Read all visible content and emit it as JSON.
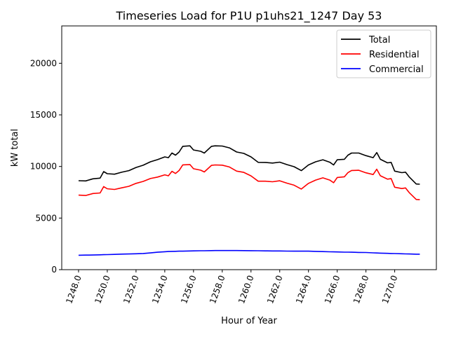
{
  "chart_data": {
    "type": "line",
    "title": "Timeseries Load for P1U p1uhs21_1247  Day 53",
    "xlabel": "Hour of Year",
    "ylabel": "kW total",
    "xlim": [
      1246.83,
      1272.9
    ],
    "ylim": [
      0,
      23620
    ],
    "xticks": [
      1248,
      1250,
      1252,
      1254,
      1256,
      1258,
      1260,
      1262,
      1264,
      1266,
      1268,
      1270
    ],
    "xtick_labels": [
      "1248.0",
      "1250.0",
      "1252.0",
      "1254.0",
      "1256.0",
      "1258.0",
      "1260.0",
      "1262.0",
      "1264.0",
      "1266.0",
      "1268.0",
      "1270.0"
    ],
    "yticks": [
      0,
      5000,
      10000,
      15000,
      20000
    ],
    "ytick_labels": [
      "0",
      "5000",
      "10000",
      "15000",
      "20000"
    ],
    "grid": false,
    "legend_position": "top-right",
    "x": [
      1248,
      1248.5,
      1249,
      1249.5,
      1249.75,
      1250,
      1250.5,
      1251,
      1251.5,
      1252,
      1252.5,
      1253,
      1253.5,
      1254,
      1254.25,
      1254.5,
      1254.75,
      1255,
      1255.25,
      1255.75,
      1256,
      1256.5,
      1256.75,
      1257.25,
      1257.5,
      1258,
      1258.5,
      1259,
      1259.5,
      1260,
      1260.5,
      1261,
      1261.5,
      1262,
      1262.5,
      1263,
      1263.5,
      1264,
      1264.5,
      1265,
      1265.5,
      1265.75,
      1266,
      1266.5,
      1266.75,
      1267,
      1267.5,
      1268,
      1268.5,
      1268.75,
      1269,
      1269.5,
      1269.75,
      1270,
      1270.5,
      1270.75,
      1271,
      1271.5,
      1271.75
    ],
    "series": [
      {
        "name": "Total",
        "color": "#000000",
        "values": [
          8620,
          8600,
          8800,
          8870,
          9500,
          9300,
          9250,
          9440,
          9600,
          9900,
          10120,
          10450,
          10660,
          10930,
          10850,
          11300,
          11100,
          11400,
          11950,
          12000,
          11600,
          11470,
          11300,
          11950,
          12000,
          11980,
          11800,
          11400,
          11270,
          10930,
          10400,
          10390,
          10330,
          10420,
          10180,
          9980,
          9600,
          10150,
          10450,
          10650,
          10400,
          10150,
          10650,
          10700,
          11100,
          11300,
          11300,
          11050,
          10850,
          11350,
          10700,
          10350,
          10400,
          9550,
          9400,
          9450,
          9000,
          8300,
          8280
        ]
      },
      {
        "name": "Residential",
        "color": "#ff0000",
        "values": [
          7220,
          7190,
          7380,
          7430,
          8050,
          7840,
          7770,
          7930,
          8080,
          8360,
          8550,
          8830,
          8970,
          9190,
          9095,
          9530,
          9320,
          9610,
          10155,
          10190,
          9780,
          9640,
          9465,
          10105,
          10150,
          10130,
          9950,
          9550,
          9425,
          9090,
          8570,
          8570,
          8515,
          8610,
          8380,
          8185,
          7810,
          8360,
          8680,
          8900,
          8670,
          8425,
          8930,
          9000,
          9405,
          9610,
          9630,
          9390,
          9220,
          9735,
          9100,
          8770,
          8830,
          7990,
          7860,
          7920,
          7480,
          6800,
          6780
        ]
      },
      {
        "name": "Commercial",
        "color": "#0000ff",
        "values": [
          1400,
          1410,
          1420,
          1440,
          1450,
          1460,
          1480,
          1510,
          1520,
          1540,
          1570,
          1620,
          1690,
          1740,
          1755,
          1770,
          1780,
          1790,
          1795,
          1810,
          1820,
          1830,
          1835,
          1845,
          1850,
          1850,
          1850,
          1850,
          1845,
          1840,
          1830,
          1820,
          1815,
          1810,
          1800,
          1795,
          1790,
          1790,
          1770,
          1750,
          1730,
          1725,
          1720,
          1700,
          1695,
          1690,
          1670,
          1660,
          1630,
          1615,
          1600,
          1580,
          1570,
          1560,
          1540,
          1530,
          1520,
          1500,
          1500
        ]
      }
    ]
  }
}
